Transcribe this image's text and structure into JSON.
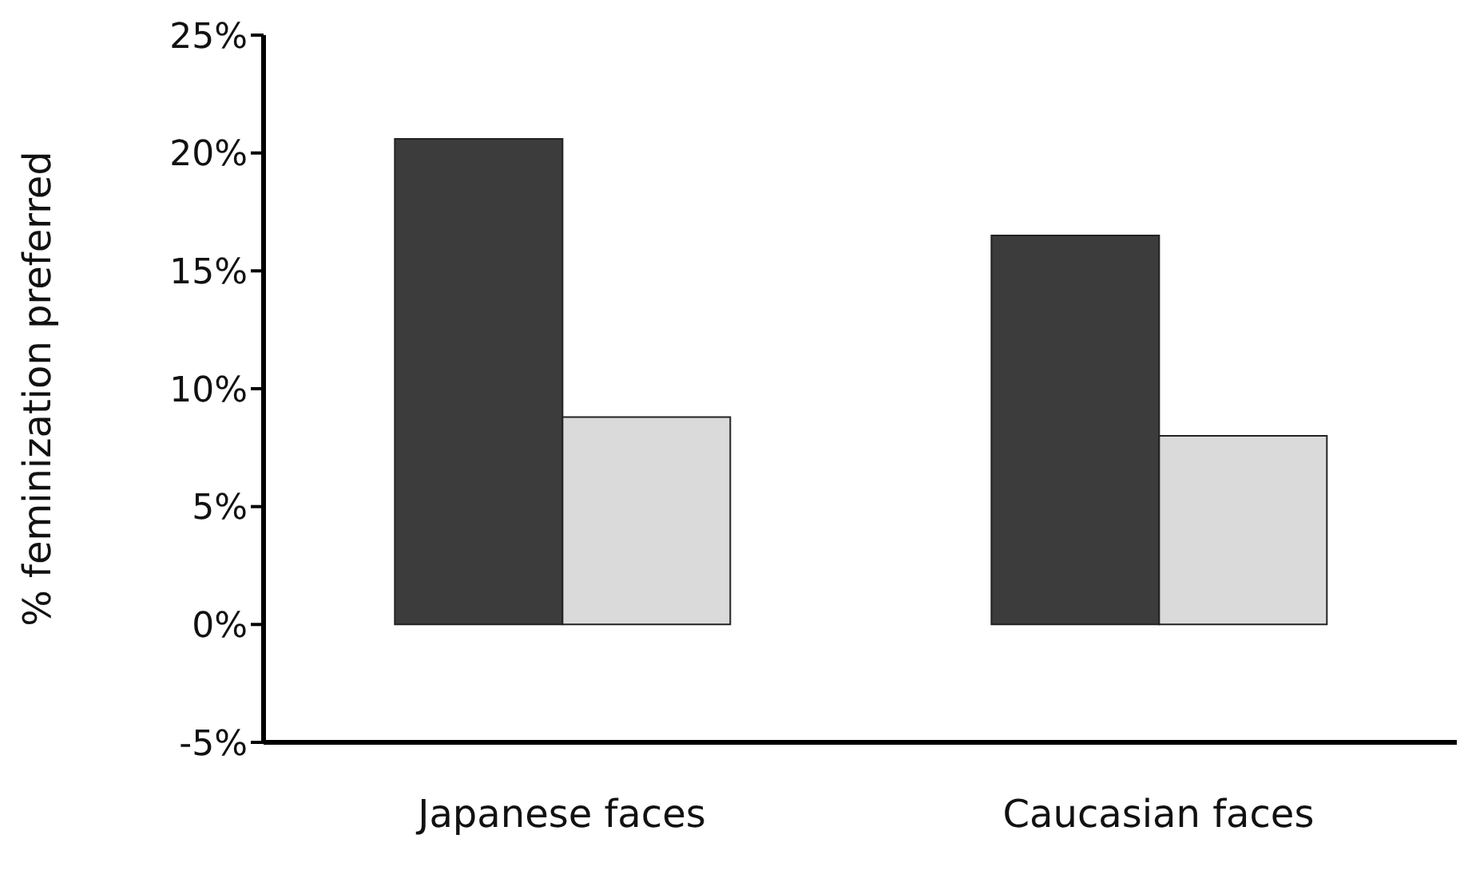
{
  "chart_data": {
    "type": "bar",
    "ylabel": "% feminization preferred",
    "categories": [
      "Japanese faces",
      "Caucasian faces"
    ],
    "series": [
      {
        "color": "#3c3c3c",
        "values": [
          20.6,
          16.5
        ]
      },
      {
        "color": "#dadada",
        "values": [
          8.8,
          8.0
        ]
      }
    ],
    "ylim": [
      -5,
      25
    ],
    "yticks": [
      {
        "value": -5,
        "label": "-5%"
      },
      {
        "value": 0,
        "label": "0%"
      },
      {
        "value": 5,
        "label": "5%"
      },
      {
        "value": 10,
        "label": "10%"
      },
      {
        "value": 15,
        "label": "15%"
      },
      {
        "value": 20,
        "label": "20%"
      },
      {
        "value": 25,
        "label": "25%"
      }
    ],
    "grid": false,
    "legend": false
  }
}
